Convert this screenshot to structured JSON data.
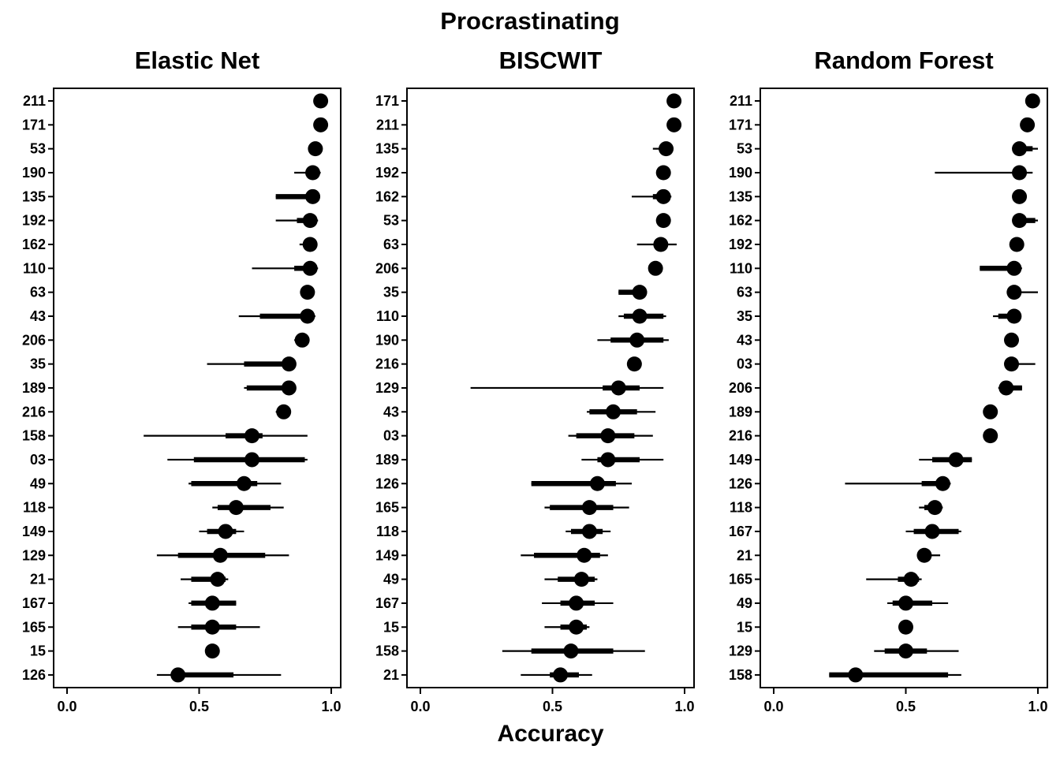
{
  "figure": {
    "title": "Procrastinating",
    "xlabel": "Accuracy",
    "x_ticks": [
      "0.0",
      "0.5",
      "1.0"
    ]
  },
  "chart_data": [
    {
      "type": "scatter",
      "title": "Elastic Net",
      "xlim": [
        0,
        1
      ],
      "x_ticks": [
        0,
        0.5,
        1.0
      ],
      "categories": [
        "211",
        "171",
        "53",
        "190",
        "135",
        "192",
        "162",
        "110",
        "63",
        "43",
        "206",
        "35",
        "189",
        "216",
        "158",
        "03",
        "49",
        "118",
        "149",
        "129",
        "21",
        "167",
        "165",
        "15",
        "126"
      ],
      "values": [
        0.96,
        0.96,
        0.94,
        0.93,
        0.93,
        0.92,
        0.92,
        0.92,
        0.91,
        0.91,
        0.89,
        0.84,
        0.84,
        0.82,
        0.7,
        0.7,
        0.67,
        0.64,
        0.6,
        0.58,
        0.57,
        0.55,
        0.55,
        0.55,
        0.42
      ],
      "thick": [
        [
          0.96,
          0.96
        ],
        [
          0.96,
          0.96
        ],
        [
          0.94,
          0.94
        ],
        [
          0.92,
          0.95
        ],
        [
          0.79,
          0.94
        ],
        [
          0.87,
          0.94
        ],
        [
          0.91,
          0.93
        ],
        [
          0.86,
          0.94
        ],
        [
          0.91,
          0.91
        ],
        [
          0.73,
          0.93
        ],
        [
          0.87,
          0.9
        ],
        [
          0.67,
          0.85
        ],
        [
          0.68,
          0.85
        ],
        [
          0.81,
          0.83
        ],
        [
          0.6,
          0.74
        ],
        [
          0.48,
          0.9
        ],
        [
          0.47,
          0.72
        ],
        [
          0.57,
          0.77
        ],
        [
          0.53,
          0.64
        ],
        [
          0.42,
          0.75
        ],
        [
          0.47,
          0.6
        ],
        [
          0.47,
          0.64
        ],
        [
          0.47,
          0.64
        ],
        [
          0.54,
          0.56
        ],
        [
          0.4,
          0.63
        ]
      ],
      "thin": [
        [
          0.96,
          0.96
        ],
        [
          0.96,
          0.96
        ],
        [
          0.93,
          0.95
        ],
        [
          0.86,
          0.96
        ],
        [
          0.79,
          0.95
        ],
        [
          0.79,
          0.95
        ],
        [
          0.88,
          0.94
        ],
        [
          0.7,
          0.95
        ],
        [
          0.89,
          0.92
        ],
        [
          0.65,
          0.94
        ],
        [
          0.86,
          0.91
        ],
        [
          0.53,
          0.86
        ],
        [
          0.67,
          0.86
        ],
        [
          0.79,
          0.84
        ],
        [
          0.29,
          0.91
        ],
        [
          0.38,
          0.91
        ],
        [
          0.46,
          0.81
        ],
        [
          0.55,
          0.82
        ],
        [
          0.5,
          0.67
        ],
        [
          0.34,
          0.84
        ],
        [
          0.43,
          0.61
        ],
        [
          0.46,
          0.64
        ],
        [
          0.42,
          0.73
        ],
        [
          0.53,
          0.57
        ],
        [
          0.34,
          0.81
        ]
      ]
    },
    {
      "type": "scatter",
      "title": "BISCWIT",
      "xlim": [
        0,
        1
      ],
      "x_ticks": [
        0,
        0.5,
        1.0
      ],
      "categories": [
        "171",
        "211",
        "135",
        "192",
        "162",
        "53",
        "63",
        "206",
        "35",
        "110",
        "190",
        "216",
        "129",
        "43",
        "03",
        "189",
        "126",
        "165",
        "118",
        "149",
        "49",
        "167",
        "15",
        "158",
        "21"
      ],
      "values": [
        0.96,
        0.96,
        0.93,
        0.92,
        0.92,
        0.92,
        0.91,
        0.89,
        0.83,
        0.83,
        0.82,
        0.81,
        0.75,
        0.73,
        0.71,
        0.71,
        0.67,
        0.64,
        0.64,
        0.62,
        0.61,
        0.59,
        0.59,
        0.57,
        0.53
      ],
      "thick": [
        [
          0.95,
          0.97
        ],
        [
          0.95,
          0.97
        ],
        [
          0.91,
          0.94
        ],
        [
          0.91,
          0.93
        ],
        [
          0.88,
          0.94
        ],
        [
          0.91,
          0.93
        ],
        [
          0.9,
          0.92
        ],
        [
          0.88,
          0.9
        ],
        [
          0.75,
          0.84
        ],
        [
          0.77,
          0.92
        ],
        [
          0.72,
          0.92
        ],
        [
          0.8,
          0.82
        ],
        [
          0.69,
          0.83
        ],
        [
          0.64,
          0.82
        ],
        [
          0.59,
          0.81
        ],
        [
          0.67,
          0.83
        ],
        [
          0.42,
          0.74
        ],
        [
          0.49,
          0.73
        ],
        [
          0.57,
          0.69
        ],
        [
          0.43,
          0.68
        ],
        [
          0.52,
          0.66
        ],
        [
          0.53,
          0.66
        ],
        [
          0.53,
          0.63
        ],
        [
          0.42,
          0.73
        ],
        [
          0.49,
          0.6
        ]
      ],
      "thin": [
        [
          0.95,
          0.97
        ],
        [
          0.95,
          0.97
        ],
        [
          0.88,
          0.95
        ],
        [
          0.9,
          0.94
        ],
        [
          0.8,
          0.95
        ],
        [
          0.9,
          0.93
        ],
        [
          0.82,
          0.97
        ],
        [
          0.87,
          0.91
        ],
        [
          0.75,
          0.85
        ],
        [
          0.75,
          0.93
        ],
        [
          0.67,
          0.94
        ],
        [
          0.79,
          0.83
        ],
        [
          0.19,
          0.92
        ],
        [
          0.63,
          0.89
        ],
        [
          0.56,
          0.88
        ],
        [
          0.61,
          0.92
        ],
        [
          0.42,
          0.8
        ],
        [
          0.47,
          0.79
        ],
        [
          0.55,
          0.72
        ],
        [
          0.38,
          0.71
        ],
        [
          0.47,
          0.67
        ],
        [
          0.46,
          0.73
        ],
        [
          0.47,
          0.64
        ],
        [
          0.31,
          0.85
        ],
        [
          0.38,
          0.65
        ]
      ]
    },
    {
      "type": "scatter",
      "title": "Random Forest",
      "xlim": [
        0,
        1
      ],
      "x_ticks": [
        0,
        0.5,
        1.0
      ],
      "categories": [
        "211",
        "171",
        "53",
        "190",
        "135",
        "162",
        "192",
        "110",
        "63",
        "35",
        "43",
        "03",
        "206",
        "189",
        "216",
        "149",
        "126",
        "118",
        "167",
        "21",
        "165",
        "49",
        "15",
        "129",
        "158"
      ],
      "values": [
        0.98,
        0.96,
        0.93,
        0.93,
        0.93,
        0.93,
        0.92,
        0.91,
        0.91,
        0.91,
        0.9,
        0.9,
        0.88,
        0.82,
        0.82,
        0.69,
        0.64,
        0.61,
        0.6,
        0.57,
        0.52,
        0.5,
        0.5,
        0.5,
        0.31
      ],
      "thick": [
        [
          0.97,
          0.99
        ],
        [
          0.95,
          0.97
        ],
        [
          0.91,
          0.98
        ],
        [
          0.92,
          0.95
        ],
        [
          0.92,
          0.94
        ],
        [
          0.91,
          0.99
        ],
        [
          0.91,
          0.93
        ],
        [
          0.78,
          0.93
        ],
        [
          0.89,
          0.92
        ],
        [
          0.85,
          0.93
        ],
        [
          0.89,
          0.91
        ],
        [
          0.89,
          0.91
        ],
        [
          0.86,
          0.94
        ],
        [
          0.81,
          0.83
        ],
        [
          0.81,
          0.83
        ],
        [
          0.6,
          0.75
        ],
        [
          0.56,
          0.66
        ],
        [
          0.57,
          0.63
        ],
        [
          0.53,
          0.7
        ],
        [
          0.55,
          0.59
        ],
        [
          0.47,
          0.55
        ],
        [
          0.45,
          0.6
        ],
        [
          0.49,
          0.51
        ],
        [
          0.42,
          0.58
        ],
        [
          0.21,
          0.66
        ]
      ],
      "thin": [
        [
          0.97,
          0.99
        ],
        [
          0.94,
          0.97
        ],
        [
          0.91,
          1.0
        ],
        [
          0.61,
          0.98
        ],
        [
          0.92,
          0.94
        ],
        [
          0.91,
          1.0
        ],
        [
          0.9,
          0.93
        ],
        [
          0.78,
          0.94
        ],
        [
          0.89,
          1.0
        ],
        [
          0.83,
          0.93
        ],
        [
          0.88,
          0.91
        ],
        [
          0.88,
          0.99
        ],
        [
          0.85,
          0.94
        ],
        [
          0.81,
          0.83
        ],
        [
          0.81,
          0.83
        ],
        [
          0.55,
          0.75
        ],
        [
          0.27,
          0.67
        ],
        [
          0.55,
          0.64
        ],
        [
          0.5,
          0.71
        ],
        [
          0.55,
          0.63
        ],
        [
          0.35,
          0.56
        ],
        [
          0.43,
          0.66
        ],
        [
          0.49,
          0.51
        ],
        [
          0.38,
          0.7
        ],
        [
          0.21,
          0.71
        ]
      ]
    }
  ]
}
